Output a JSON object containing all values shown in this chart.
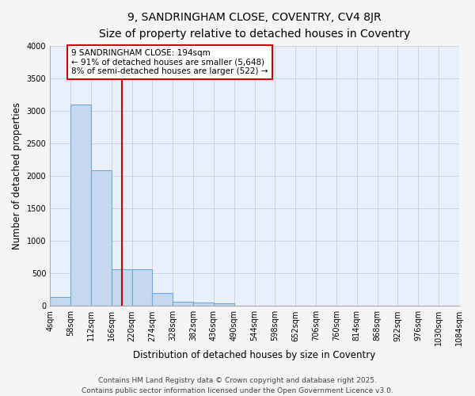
{
  "title_line1": "9, SANDRINGHAM CLOSE, COVENTRY, CV4 8JR",
  "title_line2": "Size of property relative to detached houses in Coventry",
  "xlabel": "Distribution of detached houses by size in Coventry",
  "ylabel": "Number of detached properties",
  "bin_edges": [
    4,
    58,
    112,
    166,
    220,
    274,
    328,
    382,
    436,
    490,
    544,
    598,
    652,
    706,
    760,
    814,
    868,
    922,
    976,
    1030,
    1084
  ],
  "bar_heights": [
    140,
    3100,
    2080,
    570,
    570,
    200,
    65,
    50,
    40,
    0,
    0,
    0,
    0,
    0,
    0,
    0,
    0,
    0,
    0,
    0
  ],
  "bar_color": "#c5d8f0",
  "bar_edge_color": "#6aaad4",
  "property_size": 194,
  "vline_color": "#cc0000",
  "annotation_text": "9 SANDRINGHAM CLOSE: 194sqm\n← 91% of detached houses are smaller (5,648)\n8% of semi-detached houses are larger (522) →",
  "annotation_box_color": "#ffffff",
  "annotation_box_edge": "#cc0000",
  "ylim": [
    0,
    4000
  ],
  "yticks": [
    0,
    500,
    1000,
    1500,
    2000,
    2500,
    3000,
    3500,
    4000
  ],
  "background_color": "#dde8f8",
  "plot_bg_color": "#eaf0fb",
  "fig_bg_color": "#f5f5f5",
  "grid_color": "#c8d4e8",
  "footer_line1": "Contains HM Land Registry data © Crown copyright and database right 2025.",
  "footer_line2": "Contains public sector information licensed under the Open Government Licence v3.0.",
  "title_fontsize": 10,
  "subtitle_fontsize": 9,
  "axis_label_fontsize": 8.5,
  "tick_fontsize": 7,
  "annotation_fontsize": 7.5,
  "footer_fontsize": 6.5
}
